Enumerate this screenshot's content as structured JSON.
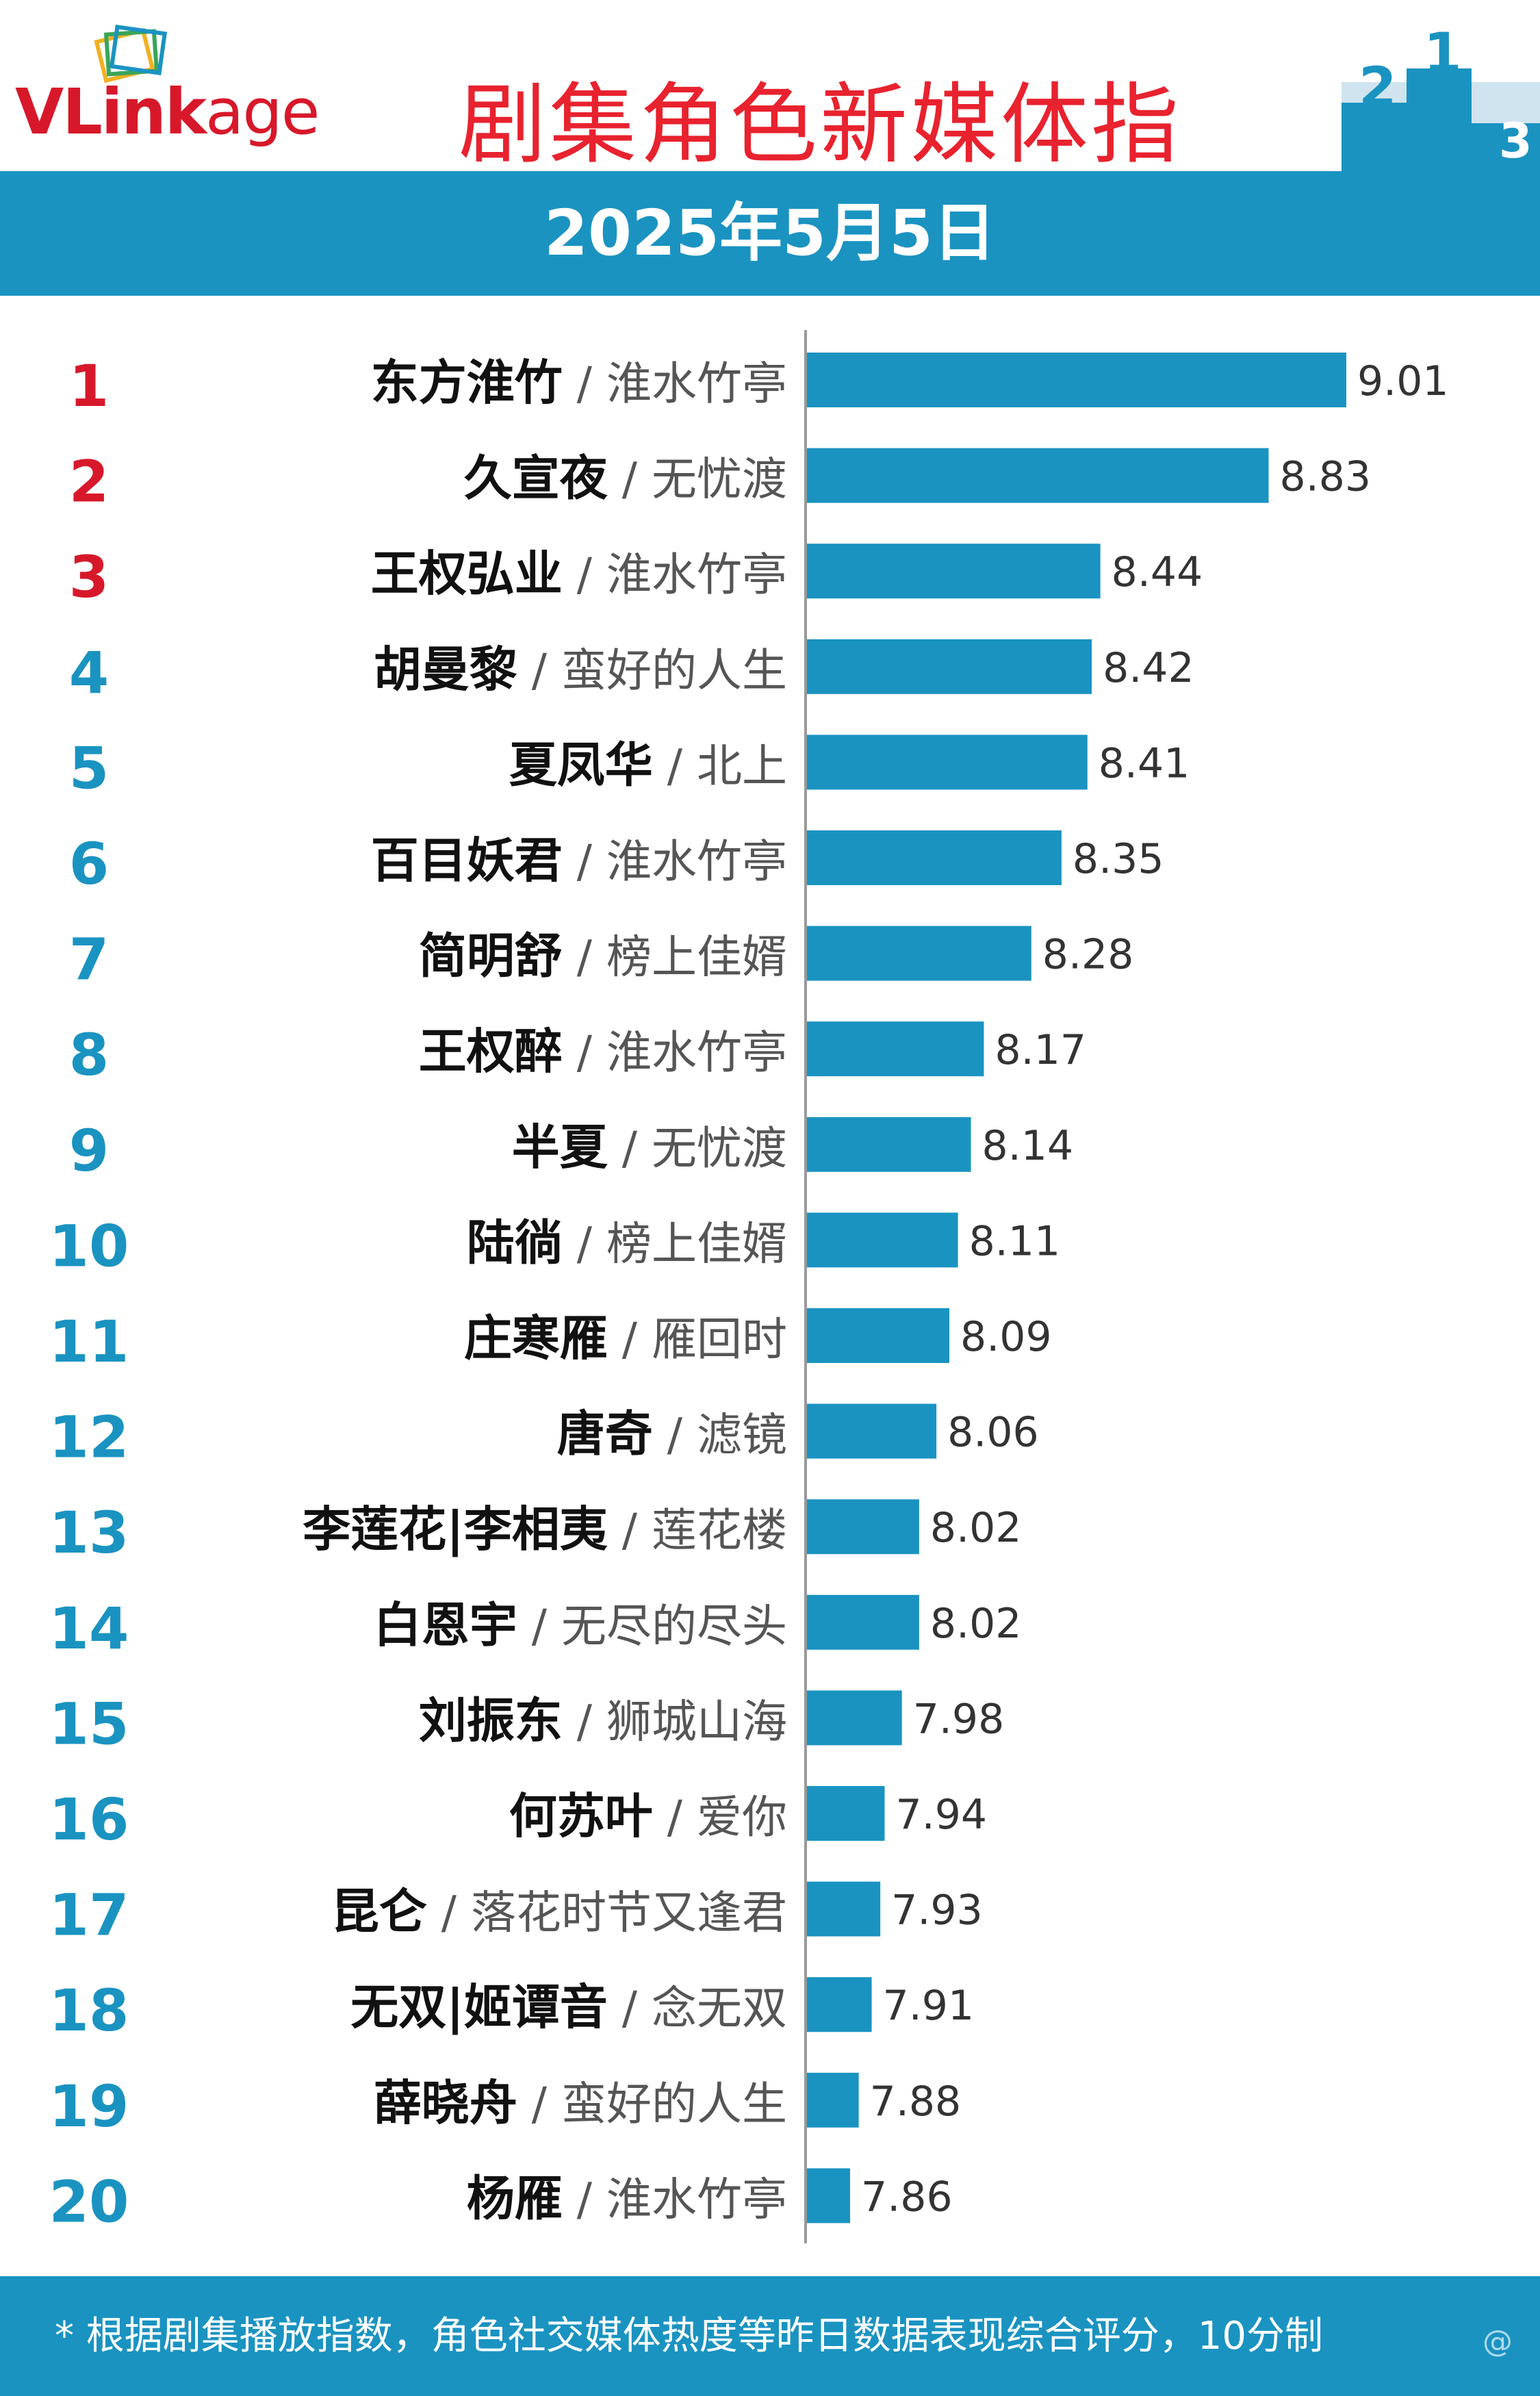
{
  "header": {
    "logo_prefix": "VLink",
    "logo_suffix": "age",
    "title": "剧集角色新媒体指",
    "date": "2025年5月5日"
  },
  "colors": {
    "accent": "#1a93c1",
    "title_red": "#e8222e",
    "rank_top": "#d7182a",
    "rank_other": "#1a93c1",
    "bar": "#1a93c1"
  },
  "chart_data": {
    "type": "bar",
    "orientation": "horizontal",
    "categories": [
      {
        "rank": "1",
        "name": "东方淮竹",
        "drama": "淮水竹亭"
      },
      {
        "rank": "2",
        "name": "久宣夜",
        "drama": "无忧渡"
      },
      {
        "rank": "3",
        "name": "王权弘业",
        "drama": "淮水竹亭"
      },
      {
        "rank": "4",
        "name": "胡曼黎",
        "drama": "蛮好的人生"
      },
      {
        "rank": "5",
        "name": "夏凤华",
        "drama": "北上"
      },
      {
        "rank": "6",
        "name": "百目妖君",
        "drama": "淮水竹亭"
      },
      {
        "rank": "7",
        "name": "简明舒",
        "drama": "榜上佳婿"
      },
      {
        "rank": "8",
        "name": "王权醉",
        "drama": "淮水竹亭"
      },
      {
        "rank": "9",
        "name": "半夏",
        "drama": "无忧渡"
      },
      {
        "rank": "10",
        "name": "陆徜",
        "drama": "榜上佳婿"
      },
      {
        "rank": "11",
        "name": "庄寒雁",
        "drama": "雁回时"
      },
      {
        "rank": "12",
        "name": "唐奇",
        "drama": "滤镜"
      },
      {
        "rank": "13",
        "name": "李莲花|李相夷",
        "drama": "莲花楼"
      },
      {
        "rank": "14",
        "name": "白恩宇",
        "drama": "无尽的尽头"
      },
      {
        "rank": "15",
        "name": "刘振东",
        "drama": "狮城山海"
      },
      {
        "rank": "16",
        "name": "何苏叶",
        "drama": "爱你"
      },
      {
        "rank": "17",
        "name": "昆仑",
        "drama": "落花时节又逢君"
      },
      {
        "rank": "18",
        "name": "无双|姬谭音",
        "drama": "念无双"
      },
      {
        "rank": "19",
        "name": "薛晓舟",
        "drama": "蛮好的人生"
      },
      {
        "rank": "20",
        "name": "杨雁",
        "drama": "淮水竹亭"
      }
    ],
    "values": [
      9.01,
      8.83,
      8.44,
      8.42,
      8.41,
      8.35,
      8.28,
      8.17,
      8.14,
      8.11,
      8.09,
      8.06,
      8.02,
      8.02,
      7.98,
      7.94,
      7.93,
      7.91,
      7.88,
      7.86
    ],
    "value_labels": [
      "9.01",
      "8.83",
      "8.44",
      "8.42",
      "8.41",
      "8.35",
      "8.28",
      "8.17",
      "8.14",
      "8.11",
      "8.09",
      "8.06",
      "8.02",
      "8.02",
      "7.98",
      "7.94",
      "7.93",
      "7.91",
      "7.88",
      "7.86"
    ],
    "xlim": [
      7.76,
      9.01
    ],
    "grid": false
  },
  "footer": {
    "note": "* 根据剧集播放指数，角色社交媒体热度等昨日数据表现综合评分，10分制",
    "watermark": "@"
  }
}
